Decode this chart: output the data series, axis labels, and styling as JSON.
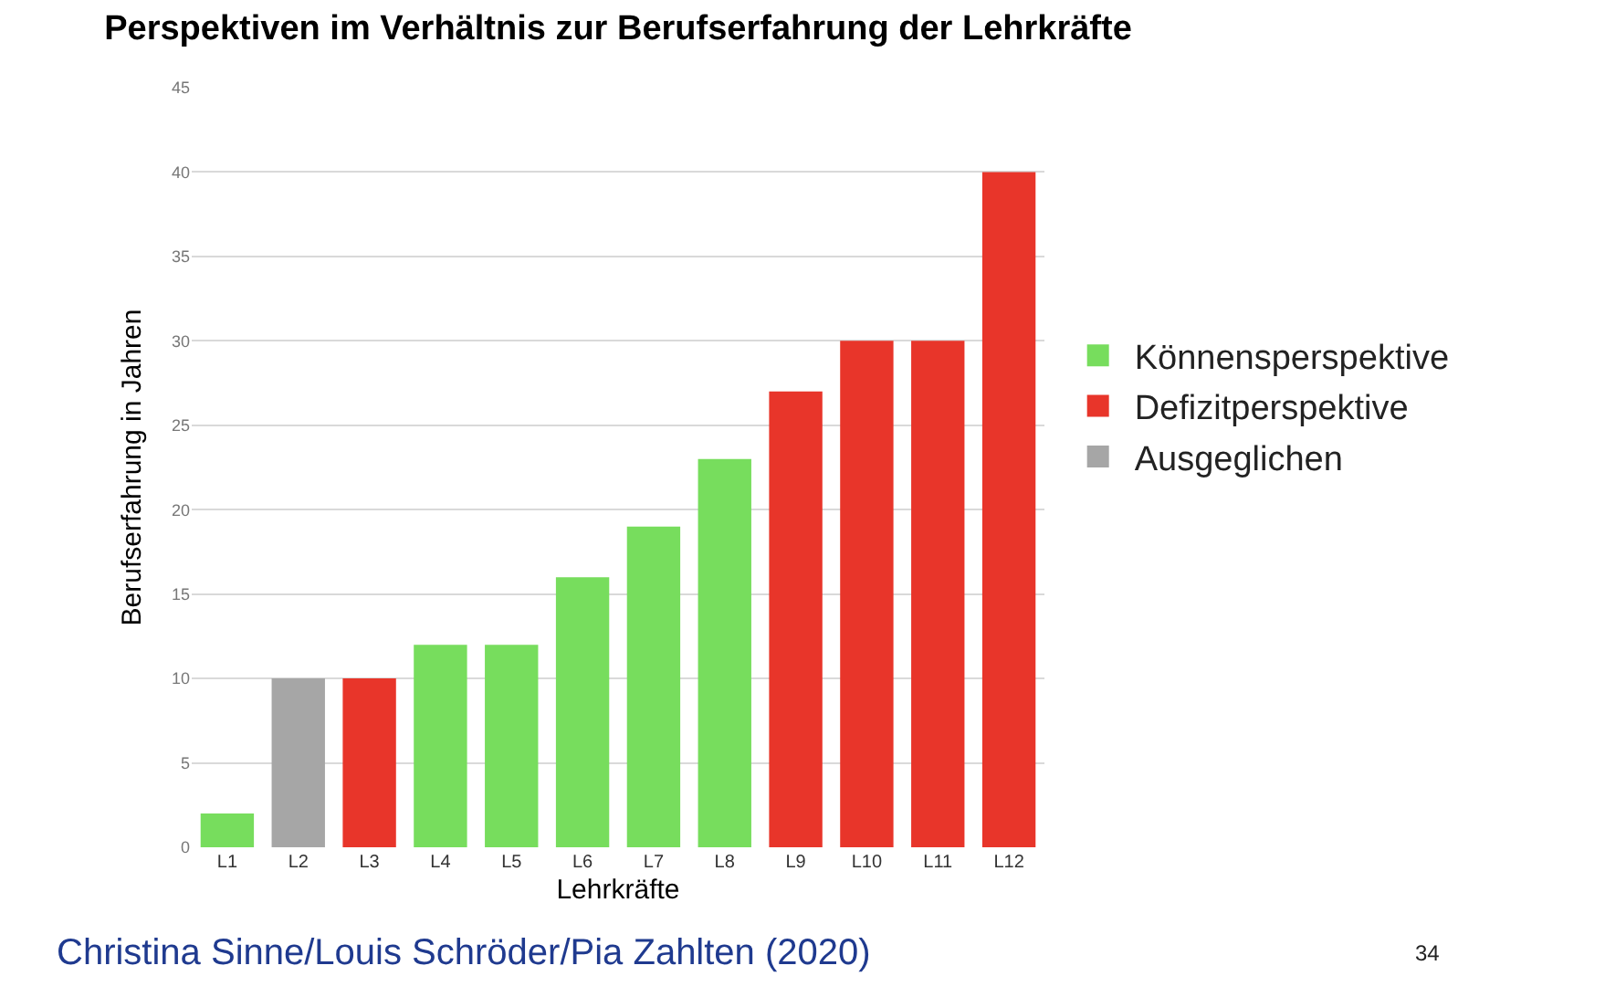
{
  "chart_data": {
    "type": "bar",
    "title": "Perspektiven im Verhältnis zur Berufserfahrung der Lehrkräfte",
    "xlabel": "Lehrkräfte",
    "ylabel": "Berufserfahrung in Jahren",
    "categories": [
      "L1",
      "L2",
      "L3",
      "L4",
      "L5",
      "L6",
      "L7",
      "L8",
      "L9",
      "L10",
      "L11",
      "L12"
    ],
    "stacked": true,
    "series": [
      {
        "name": "Könnensperspektive",
        "color": "#77dd5d",
        "values": [
          2,
          null,
          null,
          12,
          12,
          16,
          19,
          23,
          null,
          null,
          null,
          null
        ]
      },
      {
        "name": "Defizitperspektive",
        "color": "#e8352a",
        "values": [
          null,
          null,
          10,
          null,
          null,
          null,
          null,
          null,
          27,
          30,
          30,
          40
        ]
      },
      {
        "name": "Ausgeglichen",
        "color": "#a6a6a6",
        "values": [
          null,
          10,
          null,
          null,
          null,
          null,
          null,
          null,
          null,
          null,
          null,
          null
        ]
      }
    ],
    "ylim": [
      0,
      45
    ],
    "yticks": [
      0,
      5,
      10,
      15,
      20,
      25,
      30,
      35,
      40,
      45
    ],
    "grid": "y",
    "legend": "right",
    "annotations": [
      "Christina Sinne/Louis Schröder/Pia Zahlten (2020)",
      "34"
    ]
  }
}
